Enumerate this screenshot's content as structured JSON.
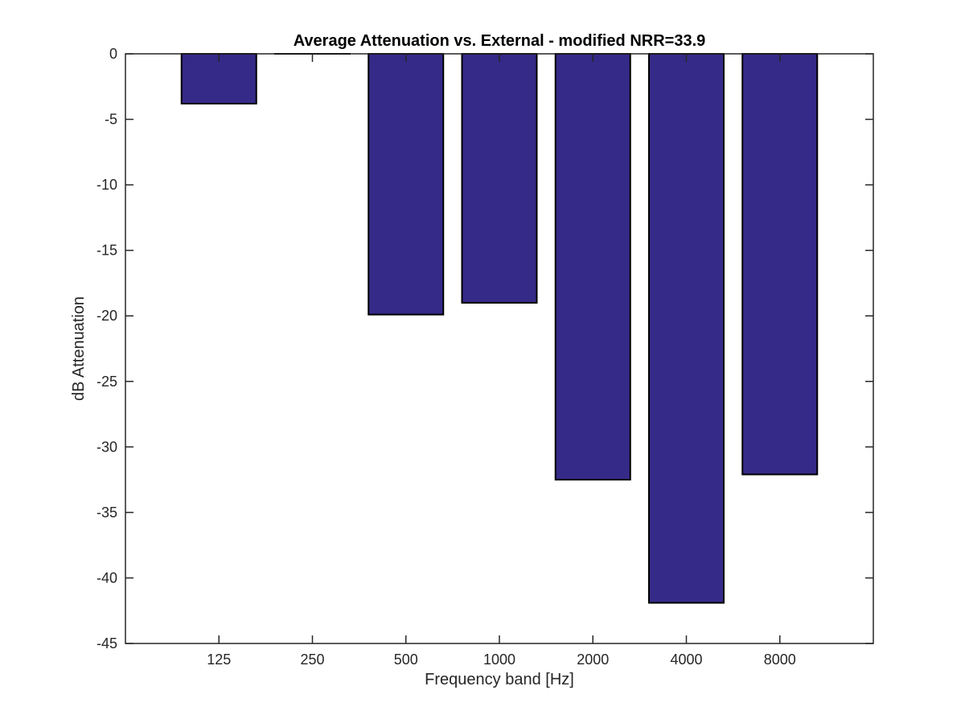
{
  "chart_data": {
    "type": "bar",
    "title": "Average Attenuation vs. External - modified NRR=33.9",
    "xlabel": "Frequency band [Hz]",
    "ylabel": "dB Attenuation",
    "categories": [
      "125",
      "250",
      "500",
      "1000",
      "2000",
      "4000",
      "8000"
    ],
    "values": [
      -3.8,
      0,
      -19.9,
      -19.0,
      -32.5,
      -41.9,
      -32.1
    ],
    "ylim": [
      -45,
      0
    ],
    "yticks": [
      0,
      -5,
      -10,
      -15,
      -20,
      -25,
      -30,
      -35,
      -40,
      -45
    ],
    "ytick_labels": [
      "0",
      "-5",
      "-10",
      "-15",
      "-20",
      "-25",
      "-30",
      "-35",
      "-40",
      "-45"
    ],
    "grid": false,
    "bar_color": "#352a87",
    "edge_color": "#000000"
  }
}
